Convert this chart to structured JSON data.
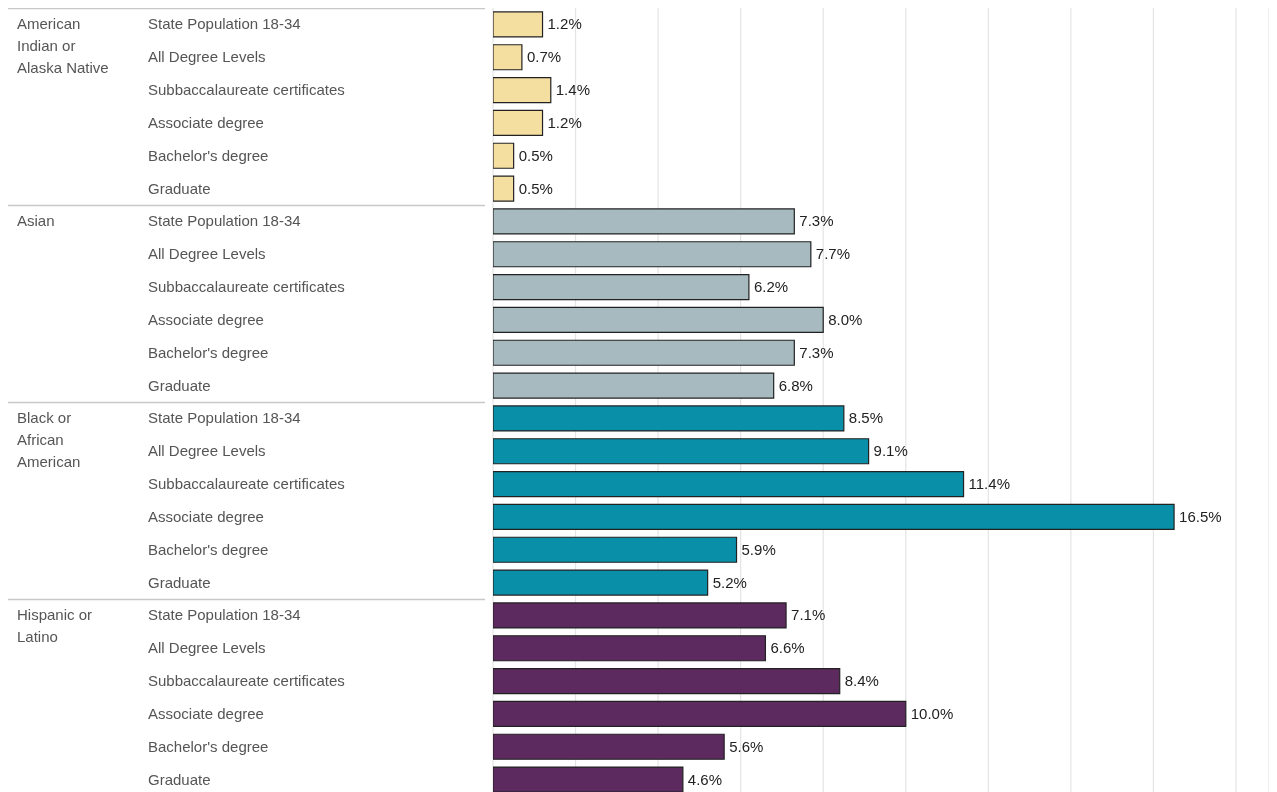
{
  "chart_data": {
    "type": "bar",
    "orientation": "horizontal",
    "stacked": true,
    "categories": [
      "State Population 18-34",
      "All Degree Levels",
      "Subbaccalaureate certificates",
      "Associate degree",
      "Bachelor's degree",
      "Graduate",
      "State Population 18-34",
      "All Degree Levels",
      "Subbaccalaureate certificates",
      "Associate degree",
      "Bachelor's degree",
      "Graduate",
      "State Population 18-34",
      "All Degree Levels",
      "Subbaccalaureate certificates",
      "Associate degree",
      "Bachelor's degree",
      "Graduate",
      "State Population 18-34",
      "All Degree Levels",
      "Subbaccalaureate certificates",
      "Associate degree",
      "Bachelor's degree",
      "Graduate"
    ],
    "series": [
      {
        "name": "American Indian or Alaska Native",
        "color": "#f5dfa0",
        "values": [
          1.2,
          0.7,
          1.4,
          1.2,
          0.5,
          0.5,
          null,
          null,
          null,
          null,
          null,
          null,
          null,
          null,
          null,
          null,
          null,
          null,
          null,
          null,
          null,
          null,
          null,
          null
        ],
        "value_labels": [
          "1.2%",
          "0.7%",
          "1.4%",
          "1.2%",
          "0.5%",
          "0.5%",
          null,
          null,
          null,
          null,
          null,
          null,
          null,
          null,
          null,
          null,
          null,
          null,
          null,
          null,
          null,
          null,
          null,
          null
        ]
      },
      {
        "name": "Asian",
        "color": "#a6babf",
        "values": [
          null,
          null,
          null,
          null,
          null,
          null,
          7.3,
          7.7,
          6.2,
          8.0,
          7.3,
          6.8,
          null,
          null,
          null,
          null,
          null,
          null,
          null,
          null,
          null,
          null,
          null,
          null
        ],
        "value_labels": [
          null,
          null,
          null,
          null,
          null,
          null,
          "7.3%",
          "7.7%",
          "6.2%",
          "8.0%",
          "7.3%",
          "6.8%",
          null,
          null,
          null,
          null,
          null,
          null,
          null,
          null,
          null,
          null,
          null,
          null
        ]
      },
      {
        "name": "Black or African American",
        "color": "#0a8fa8",
        "values": [
          null,
          null,
          null,
          null,
          null,
          null,
          null,
          null,
          null,
          null,
          null,
          null,
          8.5,
          9.1,
          11.4,
          16.5,
          5.9,
          5.2,
          null,
          null,
          null,
          null,
          null,
          null
        ],
        "value_labels": [
          null,
          null,
          null,
          null,
          null,
          null,
          null,
          null,
          null,
          null,
          null,
          null,
          "8.5%",
          "9.1%",
          "11.4%",
          "16.5%",
          "5.9%",
          "5.2%",
          null,
          null,
          null,
          null,
          null,
          null
        ]
      },
      {
        "name": "Hispanic or Latino",
        "color": "#5c2a5e",
        "values": [
          null,
          null,
          null,
          null,
          null,
          null,
          null,
          null,
          null,
          null,
          null,
          null,
          null,
          null,
          null,
          null,
          null,
          null,
          7.1,
          6.6,
          8.4,
          10.0,
          5.6,
          4.6
        ],
        "value_labels": [
          null,
          null,
          null,
          null,
          null,
          null,
          null,
          null,
          null,
          null,
          null,
          null,
          null,
          null,
          null,
          null,
          null,
          null,
          "7.1%",
          "6.6%",
          "8.4%",
          "10.0%",
          "5.6%",
          "4.6%"
        ]
      }
    ],
    "xlim": [
      0,
      18.8
    ],
    "xticks": [
      {
        "value": 0,
        "label": null
      },
      {
        "value": 2,
        "label": null
      },
      {
        "value": 4,
        "label": null
      },
      {
        "value": 6,
        "label": null
      },
      {
        "value": 8,
        "label": null
      },
      {
        "value": 10,
        "label": null
      },
      {
        "value": 12,
        "label": null
      },
      {
        "value": 14,
        "label": null
      },
      {
        "value": 16,
        "label": null
      },
      {
        "value": 18,
        "label": null
      }
    ],
    "grid": "x",
    "tick_labels": "y"
  }
}
